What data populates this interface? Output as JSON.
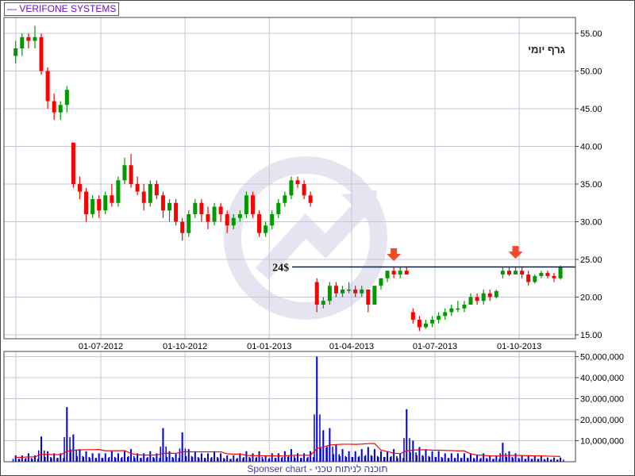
{
  "legend": {
    "label": "VERIFONE SYSTEMS",
    "color": "#6a0dcc"
  },
  "chart_label": "גרף יומי",
  "footer": "Sponser chart - תוכנה לניתוח טכני",
  "colors": {
    "up": "#009900",
    "down": "#ff0000",
    "volume": "#0000dd",
    "volume_ma": "#ff0000",
    "grid": "#c8c4d8",
    "arrow": "#f04a2a",
    "watermark": "#e6e4f0"
  },
  "chart_data": [
    {
      "type": "candlestick",
      "title": "",
      "y_ticks": [
        "55.00",
        "50.00",
        "45.00",
        "40.00",
        "35.00",
        "30.00",
        "25.00",
        "20.00",
        "15.00"
      ],
      "ylim": [
        14.5,
        57
      ],
      "x_ticks": [
        {
          "label": "01-07-2012",
          "date": "2012-07-01"
        },
        {
          "label": "01-10-2012",
          "date": "2012-10-01"
        },
        {
          "label": "01-01-2013",
          "date": "2013-01-01"
        },
        {
          "label": "01-04-2013",
          "date": "2013-04-01"
        },
        {
          "label": "01-07-2013",
          "date": "2013-07-01"
        },
        {
          "label": "01-10-2013",
          "date": "2013-10-01"
        }
      ],
      "grid": true,
      "level_line": {
        "value": 24,
        "label": "24$",
        "from_date": "2013-01-26"
      },
      "arrows": [
        {
          "date": "2013-05-17",
          "value": 25
        },
        {
          "date": "2013-09-27",
          "value": 25.3
        }
      ],
      "candles": [
        [
          "2012-03-30",
          52,
          54,
          51,
          53
        ],
        [
          "2012-04-06",
          53,
          55,
          52,
          54.5
        ],
        [
          "2012-04-13",
          54.5,
          55,
          53,
          54
        ],
        [
          "2012-04-20",
          54,
          56,
          53,
          54.5
        ],
        [
          "2012-04-27",
          54.5,
          55,
          49.5,
          50
        ],
        [
          "2012-05-04",
          50,
          50.5,
          45,
          46
        ],
        [
          "2012-05-11",
          46,
          47,
          43.5,
          44.5
        ],
        [
          "2012-05-18",
          44.5,
          46,
          43.5,
          45.5
        ],
        [
          "2012-05-25",
          45.5,
          48,
          44.5,
          47.5
        ],
        [
          "2012-06-01",
          40.5,
          40.5,
          34.5,
          35
        ],
        [
          "2012-06-08",
          35,
          36,
          33,
          34
        ],
        [
          "2012-06-15",
          34,
          34.5,
          30,
          31
        ],
        [
          "2012-06-22",
          31,
          33.5,
          30.5,
          33
        ],
        [
          "2012-06-29",
          33,
          33.5,
          30.5,
          31.5
        ],
        [
          "2012-07-06",
          31.5,
          34,
          31,
          33.5
        ],
        [
          "2012-07-13",
          33.5,
          35,
          32,
          32.5
        ],
        [
          "2012-07-20",
          32.5,
          36,
          32,
          35.5
        ],
        [
          "2012-07-27",
          35.5,
          38.5,
          35,
          37.5
        ],
        [
          "2012-08-03",
          37.5,
          39,
          34.5,
          35
        ],
        [
          "2012-08-10",
          35,
          36,
          33.5,
          34
        ],
        [
          "2012-08-17",
          34,
          35,
          31.5,
          32.5
        ],
        [
          "2012-08-24",
          32.5,
          35.5,
          32,
          35
        ],
        [
          "2012-08-31",
          35,
          35.5,
          33,
          33.5
        ],
        [
          "2012-09-07",
          33.5,
          34,
          30.5,
          31.5
        ],
        [
          "2012-09-14",
          31.5,
          33,
          30,
          32.5
        ],
        [
          "2012-09-21",
          32.5,
          33,
          29.5,
          30
        ],
        [
          "2012-09-28",
          30,
          30.5,
          27.5,
          28.5
        ],
        [
          "2012-10-05",
          28.5,
          31.5,
          28,
          31
        ],
        [
          "2012-10-12",
          31,
          33,
          30.5,
          32.5
        ],
        [
          "2012-10-19",
          32.5,
          33,
          30,
          31
        ],
        [
          "2012-10-26",
          31,
          32,
          29,
          30
        ],
        [
          "2012-11-02",
          30,
          32.5,
          29.5,
          32
        ],
        [
          "2012-11-09",
          32,
          32.5,
          30,
          31
        ],
        [
          "2012-11-16",
          31,
          31.5,
          28.5,
          29.5
        ],
        [
          "2012-11-23",
          29.5,
          31,
          29,
          30.5
        ],
        [
          "2012-11-30",
          30.5,
          31.5,
          30,
          31
        ],
        [
          "2012-12-07",
          31,
          34,
          30.5,
          33.5
        ],
        [
          "2012-12-14",
          33.5,
          34,
          30.5,
          31
        ],
        [
          "2012-12-21",
          31,
          31.5,
          28,
          28.5
        ],
        [
          "2012-12-28",
          28.5,
          30,
          28,
          29.5
        ],
        [
          "2013-01-04",
          29.5,
          31.5,
          29,
          31
        ],
        [
          "2013-01-11",
          31,
          33,
          30.5,
          32.5
        ],
        [
          "2013-01-18",
          32.5,
          34,
          32,
          33.5
        ],
        [
          "2013-01-25",
          33.5,
          36,
          33,
          35.5
        ],
        [
          "2013-02-01",
          35.5,
          36,
          34.5,
          35
        ],
        [
          "2013-02-08",
          35,
          35.5,
          33,
          33.5
        ],
        [
          "2013-02-15",
          33.5,
          34,
          32,
          32.5
        ],
        [
          "2013-02-22",
          22,
          22.5,
          18,
          19
        ],
        [
          "2013-03-01",
          19,
          20,
          18.5,
          19.5
        ],
        [
          "2013-03-08",
          19.5,
          22,
          19,
          21.5
        ],
        [
          "2013-03-15",
          21.5,
          22,
          20,
          20.5
        ],
        [
          "2013-03-22",
          20.5,
          21.5,
          20,
          21
        ],
        [
          "2013-03-29",
          21,
          22,
          20.5,
          21
        ],
        [
          "2013-04-05",
          21,
          21.5,
          20,
          20.5
        ],
        [
          "2013-04-12",
          20.5,
          21.5,
          20,
          21
        ],
        [
          "2013-04-19",
          21,
          21,
          18,
          19
        ],
        [
          "2013-04-26",
          19,
          21.5,
          19,
          21.5
        ],
        [
          "2013-05-03",
          21.5,
          22.5,
          21,
          22.5
        ],
        [
          "2013-05-10",
          22.5,
          23.5,
          22,
          23.5
        ],
        [
          "2013-05-17",
          23.5,
          24,
          22.5,
          23
        ],
        [
          "2013-05-24",
          23,
          24,
          22.5,
          23.5
        ],
        [
          "2013-05-31",
          23.5,
          24,
          23,
          23
        ],
        [
          "2013-06-07",
          18,
          18.5,
          16.5,
          17
        ],
        [
          "2013-06-14",
          17,
          17.5,
          15.5,
          16
        ],
        [
          "2013-06-21",
          16,
          17,
          15.8,
          16.5
        ],
        [
          "2013-06-28",
          16.5,
          17.5,
          16,
          17
        ],
        [
          "2013-07-05",
          17,
          18,
          16.5,
          17.5
        ],
        [
          "2013-07-12",
          17.5,
          18.5,
          17,
          18
        ],
        [
          "2013-07-19",
          18,
          19,
          17.5,
          18.5
        ],
        [
          "2013-07-26",
          18.5,
          19.5,
          18,
          18.5
        ],
        [
          "2013-08-02",
          18.5,
          19.5,
          18,
          19
        ],
        [
          "2013-08-09",
          19,
          20.5,
          19,
          20
        ],
        [
          "2013-08-16",
          20,
          20.5,
          19,
          19.5
        ],
        [
          "2013-08-23",
          19.5,
          21,
          19,
          20.5
        ],
        [
          "2013-08-30",
          20.5,
          21,
          19.5,
          20
        ],
        [
          "2013-09-06",
          20,
          21,
          19.8,
          20.8
        ],
        [
          "2013-09-13",
          23,
          24,
          22.5,
          23.5
        ],
        [
          "2013-09-20",
          23.5,
          24,
          22.8,
          23
        ],
        [
          "2013-09-27",
          23,
          24,
          23,
          23.5
        ],
        [
          "2013-10-04",
          23.5,
          24,
          22.5,
          23
        ],
        [
          "2013-10-11",
          23,
          23.5,
          21.5,
          22
        ],
        [
          "2013-10-18",
          22,
          23,
          21.8,
          22.8
        ],
        [
          "2013-10-25",
          22.8,
          23.5,
          22.5,
          23.2
        ],
        [
          "2013-11-01",
          23.2,
          23.5,
          22.5,
          22.8
        ],
        [
          "2013-11-08",
          22.8,
          23.2,
          22,
          22.5
        ],
        [
          "2013-11-15",
          22.5,
          24.2,
          22.3,
          24
        ]
      ]
    },
    {
      "type": "bar",
      "title": "",
      "y_ticks": [
        "50,000,000",
        "40,000,000",
        "30,000,000",
        "20,000,000",
        "10,000,000"
      ],
      "ylim": [
        0,
        52000000
      ],
      "grid": true,
      "volume": [
        3,
        3,
        4,
        3,
        12,
        5,
        4,
        4,
        26,
        13,
        6,
        5,
        4,
        4,
        4,
        5,
        4,
        5,
        6,
        4,
        4,
        5,
        4,
        16,
        5,
        4,
        14,
        6,
        5,
        4,
        4,
        5,
        4,
        3,
        3,
        4,
        5,
        4,
        5,
        3,
        4,
        4,
        5,
        6,
        4,
        4,
        5,
        50,
        15,
        16,
        8,
        6,
        5,
        5,
        6,
        7,
        6,
        5,
        5,
        6,
        4,
        25,
        10,
        7,
        6,
        5,
        5,
        4,
        4,
        4,
        4,
        4,
        3,
        4,
        3,
        3,
        9,
        5,
        4,
        3,
        3,
        3,
        3,
        2,
        2,
        2
      ],
      "volume_unit": "millions"
    }
  ]
}
